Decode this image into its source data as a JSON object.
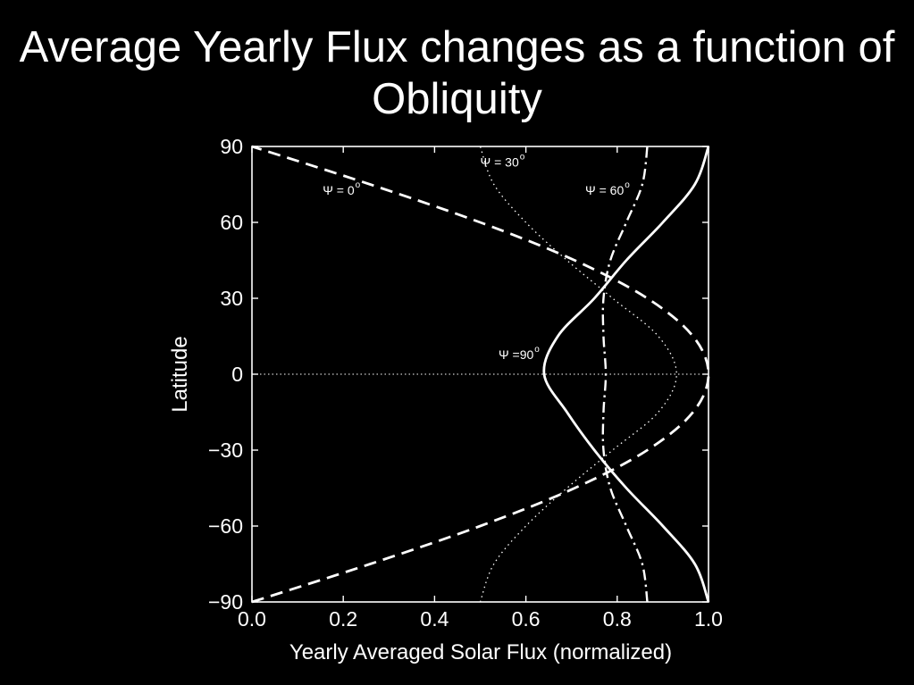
{
  "slide": {
    "title": "Average Yearly Flux changes as a function of Obliquity",
    "background": "#000000",
    "text_color": "#ffffff"
  },
  "chart_data": {
    "type": "line",
    "title": "",
    "xlabel": "Yearly Averaged Solar Flux (normalized)",
    "ylabel": "Latitude",
    "xlim": [
      0.0,
      1.0
    ],
    "ylim": [
      -90,
      90
    ],
    "x_ticks": [
      "0.0",
      "0.2",
      "0.4",
      "0.6",
      "0.8",
      "1.0"
    ],
    "y_ticks": [
      "90",
      "60",
      "30",
      "0",
      "−30",
      "−60",
      "−90"
    ],
    "grid": false,
    "reference_line": {
      "y": 0,
      "style": "dotted"
    },
    "series": [
      {
        "name": "Ψ = 0",
        "label_sup": "o",
        "style": "dashed",
        "latitude": [
          -90,
          -75,
          -60,
          -45,
          -30,
          -15,
          0,
          15,
          30,
          45,
          60,
          75,
          90
        ],
        "flux": [
          0.0,
          0.259,
          0.5,
          0.707,
          0.866,
          0.966,
          1.0,
          0.966,
          0.866,
          0.707,
          0.5,
          0.259,
          0.0
        ]
      },
      {
        "name": "Ψ = 30",
        "label_sup": "o",
        "style": "dotted",
        "latitude": [
          -90,
          -75,
          -60,
          -45,
          -30,
          -15,
          0,
          15,
          30,
          45,
          60,
          75,
          90
        ],
        "flux": [
          0.5,
          0.53,
          0.6,
          0.69,
          0.79,
          0.89,
          0.93,
          0.89,
          0.79,
          0.69,
          0.6,
          0.53,
          0.5
        ]
      },
      {
        "name": "Ψ = 60",
        "label_sup": "o",
        "style": "dashdot",
        "latitude": [
          -90,
          -75,
          -60,
          -45,
          -30,
          -15,
          0,
          15,
          30,
          45,
          60,
          75,
          90
        ],
        "flux": [
          0.866,
          0.855,
          0.82,
          0.785,
          0.77,
          0.77,
          0.775,
          0.77,
          0.77,
          0.785,
          0.82,
          0.855,
          0.866
        ]
      },
      {
        "name": "Ψ =90",
        "label_sup": "o",
        "style": "solid",
        "latitude": [
          -90,
          -75,
          -60,
          -45,
          -30,
          -15,
          0,
          15,
          30,
          45,
          60,
          75,
          90
        ],
        "flux": [
          1.0,
          0.97,
          0.9,
          0.82,
          0.75,
          0.69,
          0.64,
          0.67,
          0.75,
          0.82,
          0.9,
          0.97,
          1.0
        ]
      }
    ]
  }
}
